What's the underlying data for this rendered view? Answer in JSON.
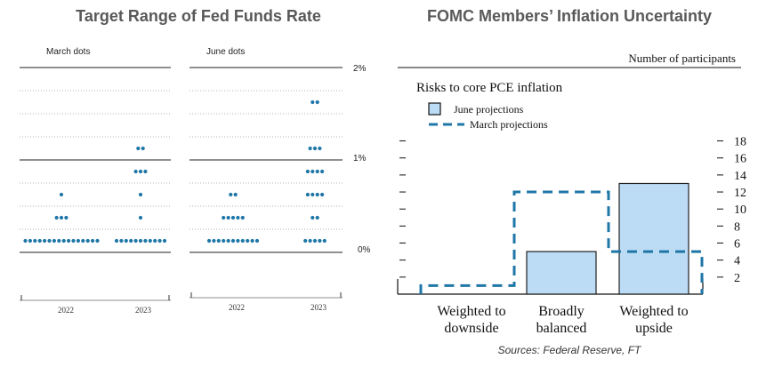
{
  "titles": {
    "left": "Target Range of Fed Funds Rate",
    "right": "FOMC Members’ Inflation Uncertainty"
  },
  "source": "Sources: Federal Reserve, FT",
  "colors": {
    "dot": "#1f77a8",
    "bar_fill": "#bcdcf6",
    "bar_stroke": "#222222",
    "dash": "#1f77a8",
    "title": "#595959",
    "grid": "#777777"
  },
  "chart_data": [
    {
      "type": "scatter",
      "title": "Target Range of Fed Funds Rate",
      "panels": [
        {
          "label": "March dots",
          "x_ticks": [
            "2022",
            "2023"
          ],
          "rows": [
            {
              "rate": 0.125,
              "count_2022": 16,
              "count_2023": 11
            },
            {
              "rate": 0.375,
              "count_2022": 3,
              "count_2023": 1
            },
            {
              "rate": 0.625,
              "count_2022": 1,
              "count_2023": 1
            },
            {
              "rate": 0.875,
              "count_2022": 0,
              "count_2023": 3
            },
            {
              "rate": 1.125,
              "count_2022": 0,
              "count_2023": 2
            }
          ]
        },
        {
          "label": "June dots",
          "x_ticks": [
            "2022",
            "2023"
          ],
          "rows": [
            {
              "rate": 0.125,
              "count_2022": 11,
              "count_2023": 5
            },
            {
              "rate": 0.375,
              "count_2022": 5,
              "count_2023": 2
            },
            {
              "rate": 0.625,
              "count_2022": 2,
              "count_2023": 4
            },
            {
              "rate": 0.875,
              "count_2022": 0,
              "count_2023": 4
            },
            {
              "rate": 1.125,
              "count_2022": 0,
              "count_2023": 3
            },
            {
              "rate": 1.625,
              "count_2022": 0,
              "count_2023": 2
            }
          ]
        }
      ],
      "y_ticks": [
        "2%",
        "1%",
        "0%"
      ],
      "ylim": [
        0,
        2
      ]
    },
    {
      "type": "bar",
      "title": "FOMC Members’ Inflation Uncertainty",
      "subtitle": "Risks to core PCE inflation",
      "ylabel": "Number of participants",
      "categories": [
        "Weighted to downside",
        "Broadly balanced",
        "Weighted to upside"
      ],
      "category_lines": [
        [
          "Weighted to",
          "downside"
        ],
        [
          "Broadly",
          "balanced"
        ],
        [
          "Weighted to",
          "upside"
        ]
      ],
      "series": [
        {
          "name": "June projections",
          "values": [
            0,
            5,
            13
          ]
        },
        {
          "name": "March projections",
          "values": [
            1,
            12,
            5
          ]
        }
      ],
      "y_ticks": [
        2,
        4,
        6,
        8,
        10,
        12,
        14,
        16,
        18
      ],
      "ylim": [
        0,
        19
      ]
    }
  ]
}
